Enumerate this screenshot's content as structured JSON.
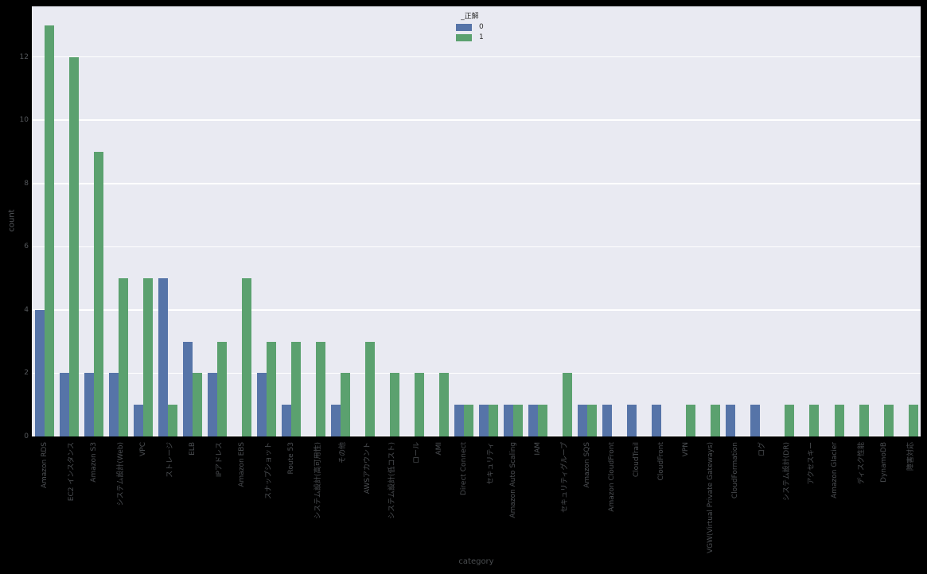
{
  "chart_data": {
    "type": "bar",
    "title": "",
    "xlabel": "category",
    "ylabel": "count",
    "legend_title": "_正解",
    "legend_position": "top-center-inside",
    "grid": "horizontal-white-on-lavender",
    "yticks": [
      0,
      2,
      4,
      6,
      8,
      10,
      12
    ],
    "ylim": [
      0,
      13.6
    ],
    "categories": [
      "Amazon RDS",
      "EC2 インスタンス",
      "Amazon S3",
      "システム設計(Web)",
      "VPC",
      "ストレージ",
      "ELB",
      "IPアドレス",
      "Amazon EBS",
      "スナップショット",
      "Route 53",
      "システム設計(高可用性)",
      "その他",
      "AWSアカウント",
      "システム設計(低コスト)",
      "ロール",
      "AMI",
      "Direct Connect",
      "セキュリティ",
      "Amazon Auto Scaling",
      "IAM",
      "セキュリティグループ",
      "Amazon SQS",
      "Amazon CloudFront",
      "CloudTrail",
      "CloudFront",
      "VPN",
      "VGW(Virtual Private Gateways)",
      "CloudFormation",
      "ログ",
      "システム設計(DR)",
      "アクセスキー",
      "Amazon Glacier",
      "ディスク性能",
      "DynamoDB",
      "障害対応"
    ],
    "series": [
      {
        "name": "0",
        "color": "#5674a8",
        "values": [
          4,
          2,
          2,
          2,
          1,
          5,
          3,
          2,
          0,
          2,
          1,
          0,
          1,
          0,
          0,
          0,
          0,
          1,
          1,
          1,
          1,
          0,
          1,
          1,
          1,
          1,
          0,
          0,
          1,
          1,
          0,
          0,
          0,
          0,
          0,
          0
        ]
      },
      {
        "name": "1",
        "color": "#5ba16f",
        "values": [
          13,
          12,
          9,
          5,
          5,
          1,
          2,
          3,
          5,
          3,
          3,
          3,
          2,
          3,
          2,
          2,
          2,
          1,
          1,
          1,
          1,
          2,
          1,
          0,
          0,
          0,
          1,
          1,
          0,
          0,
          1,
          1,
          1,
          1,
          1,
          1
        ]
      }
    ]
  },
  "colors": {
    "figure_bg": "#000000",
    "plot_bg": "#e9eaf2",
    "gridline": "#ffffff",
    "tick_text": "#55585c"
  }
}
